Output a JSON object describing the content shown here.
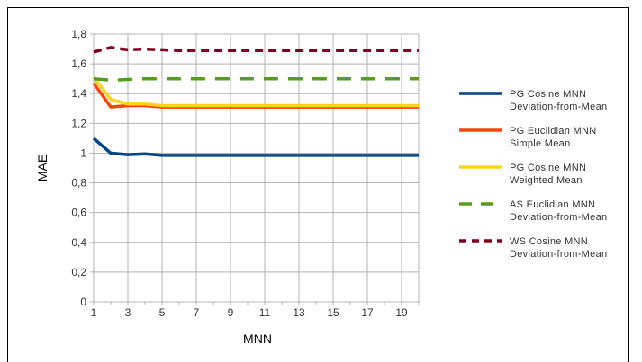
{
  "chart_data": {
    "type": "line",
    "title": "",
    "xlabel": "MNN",
    "ylabel": "MAE",
    "x": [
      1,
      2,
      3,
      4,
      5,
      6,
      7,
      8,
      9,
      10,
      11,
      12,
      13,
      14,
      15,
      16,
      17,
      18,
      19,
      20
    ],
    "x_tick_labels": [
      "1",
      "3",
      "5",
      "7",
      "9",
      "11",
      "13",
      "15",
      "17",
      "19"
    ],
    "x_tick_values": [
      1,
      3,
      5,
      7,
      9,
      11,
      13,
      15,
      17,
      19
    ],
    "y_tick_labels": [
      "0",
      "0,2",
      "0,4",
      "0,6",
      "0,8",
      "1",
      "1,2",
      "1,4",
      "1,6",
      "1,8"
    ],
    "y_tick_values": [
      0,
      0.2,
      0.4,
      0.6,
      0.8,
      1.0,
      1.2,
      1.4,
      1.6,
      1.8
    ],
    "xlim": [
      1,
      20
    ],
    "ylim": [
      0,
      1.8
    ],
    "grid": true,
    "legend_position": "right",
    "series": [
      {
        "name_line1": "PG Cosine MNN",
        "name_line2": "Deviation-from-Mean",
        "color": "#004586",
        "dash": "solid",
        "values": [
          1.1,
          1.0,
          0.99,
          0.995,
          0.985,
          0.985,
          0.985,
          0.985,
          0.985,
          0.985,
          0.985,
          0.985,
          0.985,
          0.985,
          0.985,
          0.985,
          0.985,
          0.985,
          0.985,
          0.985
        ]
      },
      {
        "name_line1": "PG Euclidian MNN",
        "name_line2": "Simple Mean",
        "color": "#ff420e",
        "dash": "solid",
        "values": [
          1.47,
          1.31,
          1.32,
          1.32,
          1.31,
          1.31,
          1.31,
          1.31,
          1.31,
          1.31,
          1.31,
          1.31,
          1.31,
          1.31,
          1.31,
          1.31,
          1.31,
          1.31,
          1.31,
          1.31
        ]
      },
      {
        "name_line1": "PG Cosine MNN",
        "name_line2": "Weighted Mean",
        "color": "#ffd320",
        "dash": "solid",
        "values": [
          1.51,
          1.36,
          1.33,
          1.33,
          1.32,
          1.32,
          1.32,
          1.32,
          1.32,
          1.32,
          1.32,
          1.32,
          1.32,
          1.32,
          1.32,
          1.32,
          1.32,
          1.32,
          1.32,
          1.32
        ]
      },
      {
        "name_line1": "AS Euclidian MNN",
        "name_line2": "Deviation-from-Mean",
        "color": "#579d1c",
        "dash": "long",
        "values": [
          1.5,
          1.49,
          1.495,
          1.5,
          1.5,
          1.5,
          1.5,
          1.5,
          1.5,
          1.5,
          1.5,
          1.5,
          1.5,
          1.5,
          1.5,
          1.5,
          1.5,
          1.5,
          1.5,
          1.5
        ]
      },
      {
        "name_line1": "WS Cosine MNN",
        "name_line2": "Deviation-from-Mean",
        "color": "#7e0021",
        "dash": "short",
        "values": [
          1.68,
          1.71,
          1.695,
          1.7,
          1.695,
          1.69,
          1.69,
          1.69,
          1.69,
          1.69,
          1.69,
          1.69,
          1.69,
          1.69,
          1.69,
          1.69,
          1.69,
          1.69,
          1.69,
          1.69
        ]
      }
    ]
  }
}
